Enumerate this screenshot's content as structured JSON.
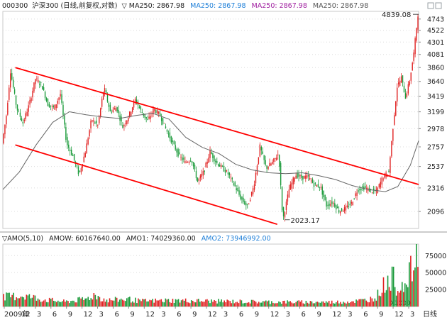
{
  "header": {
    "code": "000300",
    "name": "沪深300",
    "mode": "(日线,前复权,对数)",
    "ma": [
      {
        "label": "▽ MA250: 2867.98",
        "color": "#222222"
      },
      {
        "label": "MA250: 2867.98",
        "color": "#1e7fd8"
      },
      {
        "label": "MA250: 2867.98",
        "color": "#a020a0"
      },
      {
        "label": "MA250: 2867.98",
        "color": "#555555"
      }
    ]
  },
  "volume_header": {
    "title": "▽AMO(5,10)",
    "items": [
      {
        "label": "AMOW: 60167640.00",
        "color": "#222222"
      },
      {
        "label": "AMO1: 74029360.00",
        "color": "#222222"
      },
      {
        "label": "AMO2: 73946992.00",
        "color": "#1e7fd8"
      }
    ],
    "multiplier": "X1000"
  },
  "period_label": "日线",
  "chart_data": [
    {
      "type": "line",
      "title": "000300 沪深300 (日线,前复权,对数)",
      "y_scale": "log",
      "yticks": [
        2096,
        2316,
        2537,
        2757,
        2978,
        3199,
        3419,
        3640,
        3860,
        4081,
        4301,
        4522,
        4743
      ],
      "ylim": [
        1950,
        4900
      ],
      "xticks": [
        "2009年",
        "12",
        "3",
        "6",
        "9",
        "12",
        "3",
        "6",
        "9",
        "12",
        "3",
        "6",
        "9",
        "12",
        "3",
        "6",
        "9",
        "12",
        "3",
        "6",
        "9",
        "12",
        "3",
        "6",
        "9",
        "12",
        "3"
      ],
      "annotations": [
        {
          "text": "4839.08",
          "x": 1.0,
          "y": 4839.08
        },
        {
          "text": "2023.17",
          "x": 0.675,
          "y": 2023.17
        }
      ],
      "trend_lines": {
        "color": "#ff0000",
        "upper": [
          [
            0.03,
            3860
          ],
          [
            1.0,
            2350
          ]
        ],
        "lower": [
          [
            0.03,
            2780
          ],
          [
            0.66,
            1985
          ]
        ]
      },
      "series": [
        {
          "kind": "price",
          "x": [
            0,
            0.01,
            0.02,
            0.035,
            0.05,
            0.065,
            0.08,
            0.095,
            0.11,
            0.125,
            0.14,
            0.155,
            0.17,
            0.185,
            0.2,
            0.215,
            0.23,
            0.245,
            0.26,
            0.275,
            0.29,
            0.305,
            0.32,
            0.335,
            0.35,
            0.365,
            0.38,
            0.395,
            0.41,
            0.425,
            0.44,
            0.455,
            0.47,
            0.485,
            0.5,
            0.515,
            0.53,
            0.545,
            0.56,
            0.575,
            0.59,
            0.605,
            0.62,
            0.635,
            0.65,
            0.665,
            0.675,
            0.69,
            0.705,
            0.72,
            0.735,
            0.75,
            0.765,
            0.78,
            0.795,
            0.81,
            0.825,
            0.84,
            0.855,
            0.87,
            0.885,
            0.9,
            0.915,
            0.93,
            0.94,
            0.95,
            0.96,
            0.97,
            0.98,
            0.99,
            1.0
          ],
          "values": [
            2800,
            3150,
            3800,
            3250,
            3050,
            3300,
            3680,
            3580,
            3300,
            3250,
            3450,
            2800,
            2650,
            2450,
            2700,
            3100,
            3020,
            3550,
            3200,
            3260,
            3000,
            3150,
            3370,
            3200,
            3080,
            3240,
            3150,
            2960,
            2800,
            2660,
            2580,
            2620,
            2380,
            2480,
            2700,
            2580,
            2520,
            2450,
            2330,
            2210,
            2140,
            2330,
            2760,
            2520,
            2580,
            2680,
            2020,
            2300,
            2450,
            2420,
            2430,
            2350,
            2330,
            2150,
            2180,
            2100,
            2120,
            2170,
            2300,
            2320,
            2290,
            2280,
            2420,
            2480,
            3000,
            3560,
            3700,
            3400,
            3650,
            4100,
            4839
          ]
        },
        {
          "name": "MA250",
          "x": [
            0,
            0.04,
            0.08,
            0.12,
            0.16,
            0.2,
            0.24,
            0.28,
            0.32,
            0.36,
            0.4,
            0.44,
            0.48,
            0.52,
            0.56,
            0.6,
            0.64,
            0.68,
            0.72,
            0.76,
            0.8,
            0.84,
            0.88,
            0.92,
            0.95,
            0.98,
            1.0
          ],
          "values": [
            2300,
            2480,
            2780,
            3060,
            3200,
            3160,
            3130,
            3110,
            3150,
            3180,
            3100,
            2870,
            2750,
            2680,
            2560,
            2500,
            2470,
            2460,
            2470,
            2440,
            2400,
            2340,
            2300,
            2280,
            2330,
            2550,
            2830
          ]
        }
      ]
    },
    {
      "type": "bar",
      "title": "AMO(5,10)",
      "ylim": [
        0,
        92000
      ],
      "yticks": [
        25000,
        50000,
        75000
      ],
      "multiplier": "X1000",
      "colors": {
        "up": "#e02222",
        "down": "#1a9a3a"
      },
      "series": [
        {
          "name": "AMOW",
          "value": 60167640.0
        },
        {
          "name": "AMO1",
          "value": 74029360.0
        },
        {
          "name": "AMO2",
          "value": 73946992.0
        }
      ],
      "profile": {
        "x": [
          0,
          0.05,
          0.1,
          0.15,
          0.2,
          0.22,
          0.25,
          0.3,
          0.33,
          0.4,
          0.5,
          0.6,
          0.7,
          0.8,
          0.85,
          0.88,
          0.9,
          0.92,
          0.94,
          0.95,
          0.96,
          0.97,
          0.98,
          0.99,
          1.0
        ],
        "values": [
          14000,
          16000,
          10000,
          7000,
          11000,
          17000,
          9000,
          11000,
          8000,
          9000,
          8000,
          7000,
          6500,
          6500,
          8000,
          10000,
          16000,
          35000,
          42000,
          22000,
          42000,
          25000,
          52000,
          60000,
          78000
        ]
      }
    }
  ]
}
